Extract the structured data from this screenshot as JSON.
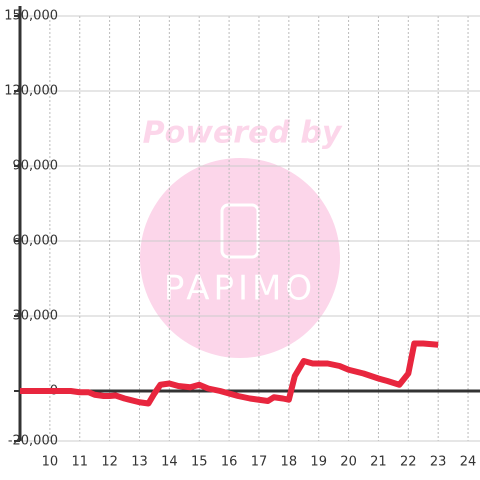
{
  "chart_data": {
    "type": "line",
    "watermark": [
      "Powered by",
      "PAPIMO"
    ],
    "x": [
      9,
      10,
      10.7,
      11,
      11.3,
      11.5,
      11.8,
      12,
      12.2,
      12.5,
      13,
      13.3,
      13.5,
      13.7,
      14,
      14.3,
      14.7,
      15,
      15.3,
      15.7,
      16,
      16.3,
      16.7,
      17,
      17.3,
      17.5,
      17.8,
      18,
      18.2,
      18.5,
      18.8,
      19.3,
      19.7,
      20,
      20.5,
      21,
      21.3,
      21.7,
      22,
      22.2,
      22.5,
      23
    ],
    "series": [
      {
        "color": "#e8263e",
        "values": [
          0,
          0,
          0,
          -500,
          -500,
          -1500,
          -2000,
          -2000,
          -1800,
          -3000,
          -4500,
          -5000,
          -1000,
          2500,
          3000,
          2000,
          1500,
          2500,
          1000,
          0,
          -1000,
          -2000,
          -3000,
          -3500,
          -4000,
          -2500,
          -3000,
          -3500,
          6000,
          12000,
          11000,
          11000,
          10000,
          8500,
          7000,
          5000,
          4000,
          2500,
          7000,
          19000,
          19000,
          18500
        ]
      }
    ],
    "xlim": [
      9,
      24.4
    ],
    "xticks": [
      10,
      11,
      12,
      13,
      14,
      15,
      16,
      17,
      18,
      19,
      20,
      21,
      22,
      23,
      24
    ],
    "ylim": [
      -20000,
      150000
    ],
    "yticks": [
      {
        "value": -20000,
        "label": "-20,000"
      },
      0,
      {
        "value": 30000,
        "label": "30,000"
      },
      {
        "value": 60000,
        "label": "60,000"
      },
      {
        "value": 90000,
        "label": "90,000"
      },
      {
        "value": 120000,
        "label": "120,000"
      },
      {
        "value": 150000,
        "label": "150,000"
      }
    ],
    "grid": true
  }
}
